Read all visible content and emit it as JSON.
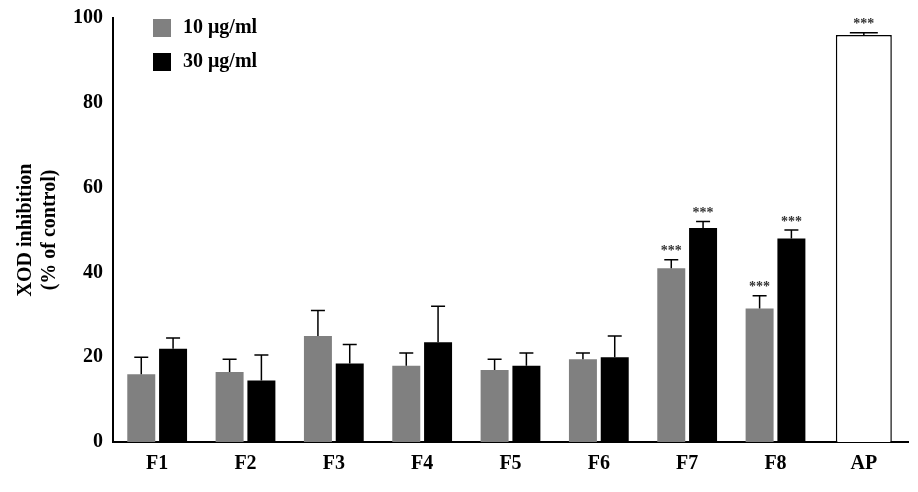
{
  "chart_data": {
    "type": "bar",
    "y_label": [
      "XOD inhibition",
      "(% of control)"
    ],
    "categories": [
      "F1",
      "F2",
      "F3",
      "F4",
      "F5",
      "F6",
      "F7",
      "F8",
      "AP"
    ],
    "series": [
      {
        "name": "10 μg/ml",
        "color": "#808080",
        "values": [
          16,
          16.5,
          25,
          18,
          17,
          19.5,
          41,
          31.5,
          null
        ],
        "errors": [
          4,
          3,
          6,
          3,
          2.5,
          1.5,
          2,
          3,
          null
        ],
        "significance": [
          null,
          null,
          null,
          null,
          null,
          null,
          "***",
          "***",
          null
        ]
      },
      {
        "name": "30 μg/ml",
        "color": "#000000",
        "values": [
          22,
          14.5,
          18.5,
          23.5,
          18,
          20,
          50.5,
          48,
          null
        ],
        "errors": [
          2.5,
          6,
          4.5,
          8.5,
          3,
          5,
          1.5,
          2,
          null
        ],
        "significance": [
          null,
          null,
          null,
          null,
          null,
          null,
          "***",
          "***",
          null
        ]
      },
      {
        "color": "#ffffff",
        "values": [
          null,
          null,
          null,
          null,
          null,
          null,
          null,
          null,
          96
        ],
        "errors": [
          null,
          null,
          null,
          null,
          null,
          null,
          null,
          null,
          0.5
        ],
        "significance": [
          null,
          null,
          null,
          null,
          null,
          null,
          null,
          null,
          "***"
        ]
      }
    ],
    "ylim": [
      0,
      100
    ],
    "yticks": [
      0,
      20,
      40,
      60,
      80,
      100
    ],
    "grid": false,
    "legend": "upper left"
  }
}
